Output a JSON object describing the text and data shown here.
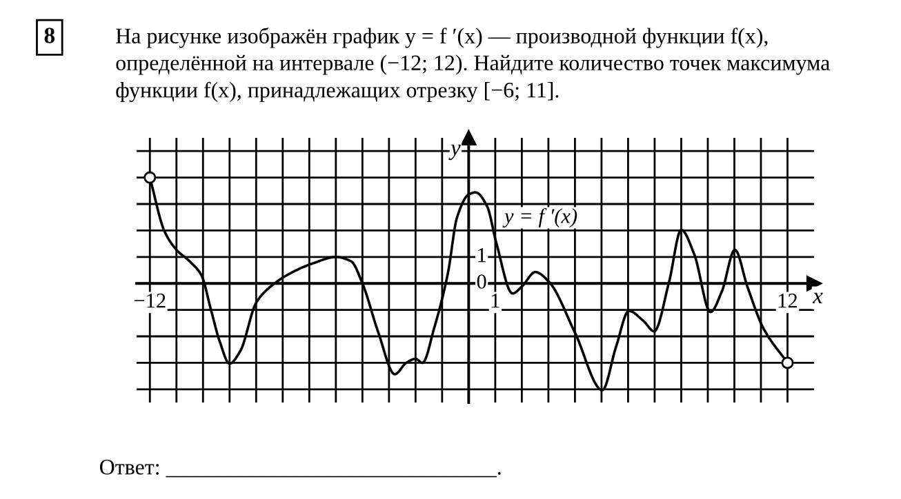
{
  "chart_data": {
    "type": "line",
    "title": "На рисунке изображён график y = f ′(x) — производной функции f(x), определённой на интервале (−12; 12). Найдите количество точек максимума функции f(x), принадлежащих отрезку [−6; 11].",
    "xlabel": "x",
    "ylabel": "y",
    "annotations": [
      "8",
      "Ответ: ______________________________."
    ],
    "xlim": [
      -12.5,
      13
    ],
    "ylim": [
      -4.5,
      5.5
    ],
    "xticks": [
      {
        "value": -12,
        "label": "−12"
      },
      {
        "value": -11,
        "label": null
      },
      {
        "value": -10,
        "label": null
      },
      {
        "value": -9,
        "label": null
      },
      {
        "value": -8,
        "label": null
      },
      {
        "value": -7,
        "label": null
      },
      {
        "value": -6,
        "label": null
      },
      {
        "value": -5,
        "label": null
      },
      {
        "value": -4,
        "label": null
      },
      {
        "value": -3,
        "label": null
      },
      {
        "value": -2,
        "label": null
      },
      {
        "value": -1,
        "label": null
      },
      {
        "value": 0,
        "label": null
      },
      1,
      {
        "value": 2,
        "label": null
      },
      {
        "value": 3,
        "label": null
      },
      {
        "value": 4,
        "label": null
      },
      {
        "value": 5,
        "label": null
      },
      {
        "value": 6,
        "label": null
      },
      {
        "value": 7,
        "label": null
      },
      {
        "value": 8,
        "label": null
      },
      {
        "value": 9,
        "label": null
      },
      {
        "value": 10,
        "label": null
      },
      {
        "value": 11,
        "label": null
      },
      12
    ],
    "yticks": [
      {
        "value": -4,
        "label": null
      },
      {
        "value": -3,
        "label": null
      },
      {
        "value": -2,
        "label": null
      },
      {
        "value": -1,
        "label": null
      },
      0,
      1,
      {
        "value": 2,
        "label": null
      },
      {
        "value": 3,
        "label": null
      },
      {
        "value": 4,
        "label": null
      },
      {
        "value": 5,
        "label": null
      }
    ],
    "grid": true,
    "series": [
      {
        "name": "y = f ′(x)",
        "color": "#000000",
        "type": "line",
        "marker": "none",
        "line_style": "solid",
        "x": [
          -12,
          -11.45,
          -11,
          -10.5,
          -10.06,
          -9.7,
          -9.37,
          -9,
          -8.6,
          -8,
          -7.55,
          -6.68,
          -5.8,
          -5,
          -4.42,
          -4,
          -3.4,
          -2.78,
          -2.35,
          -2,
          -1.74,
          -1.3,
          -0.78,
          -0.44,
          0,
          0.26,
          0.69,
          1.04,
          1.65,
          2,
          2.51,
          3.03,
          4,
          5.03,
          5.55,
          6.03,
          6.59,
          6.98,
          7.54,
          8,
          8.49,
          9.1,
          9.53,
          10.02,
          10.49,
          11.09,
          12
        ],
        "values": [
          4,
          1.97,
          1.27,
          0.83,
          0.31,
          -1,
          -2.2,
          -3.03,
          -2.56,
          -0.73,
          -0.2,
          0.4,
          0.78,
          1,
          0.83,
          0,
          -1.86,
          -3.43,
          -3,
          -2.85,
          -3,
          -1.69,
          0.4,
          2.49,
          3.36,
          3.44,
          2.92,
          1.53,
          -0.38,
          -0.12,
          0.43,
          0.05,
          -1.86,
          -4.03,
          -2.38,
          -1.04,
          -1.43,
          -1.81,
          0.05,
          2.02,
          1.1,
          -1.08,
          -0.3,
          1.27,
          -0.12,
          -1.69,
          -3
        ]
      },
      {
        "color": "#000000",
        "type": "scatter",
        "marker": "circle",
        "x": [
          -12,
          12
        ],
        "values": [
          4,
          -3
        ]
      }
    ]
  }
}
